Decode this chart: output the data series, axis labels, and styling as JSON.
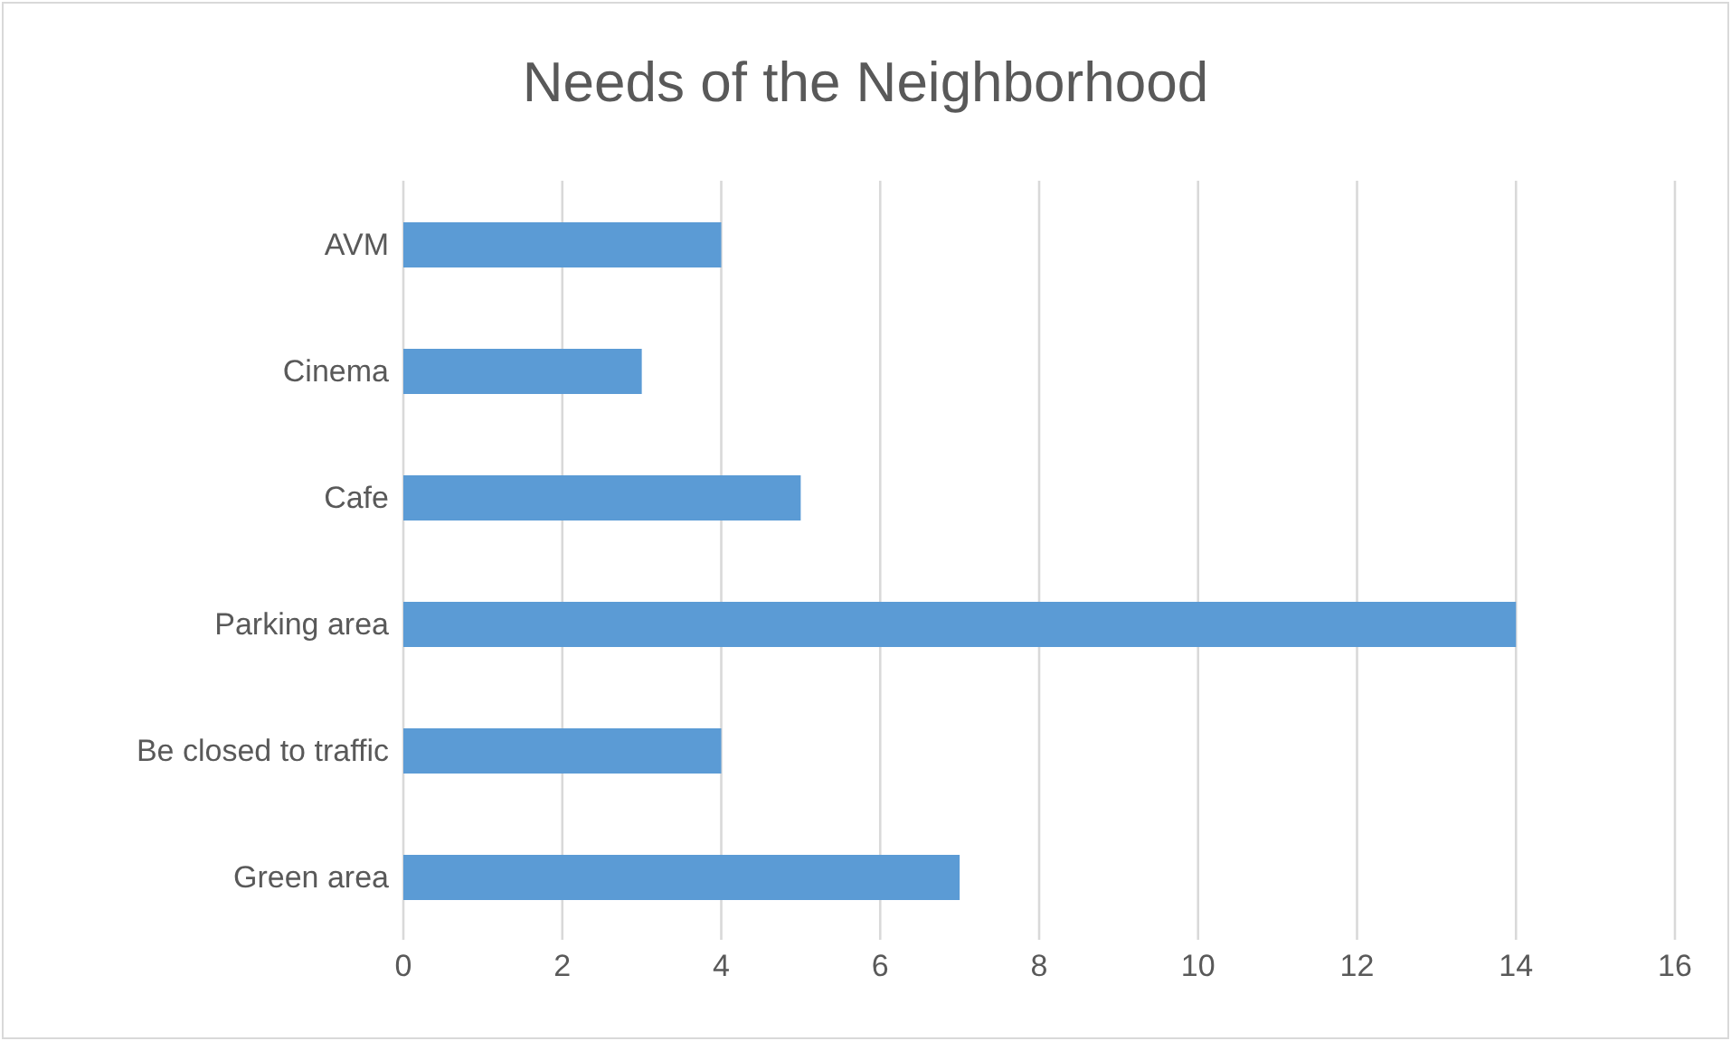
{
  "chart_data": {
    "type": "bar",
    "title": "Needs of the Neighborhood",
    "orientation": "horizontal",
    "categories": [
      "AVM",
      "Cinema",
      "Cafe",
      "Parking area",
      "Be closed to traffic",
      "Green area"
    ],
    "values": [
      4,
      3,
      5,
      14,
      4,
      7
    ],
    "color": "#5b9bd5",
    "xlim": [
      0,
      16
    ],
    "xticks": [
      0,
      2,
      4,
      6,
      8,
      10,
      12,
      14,
      16
    ],
    "grid": "x"
  }
}
